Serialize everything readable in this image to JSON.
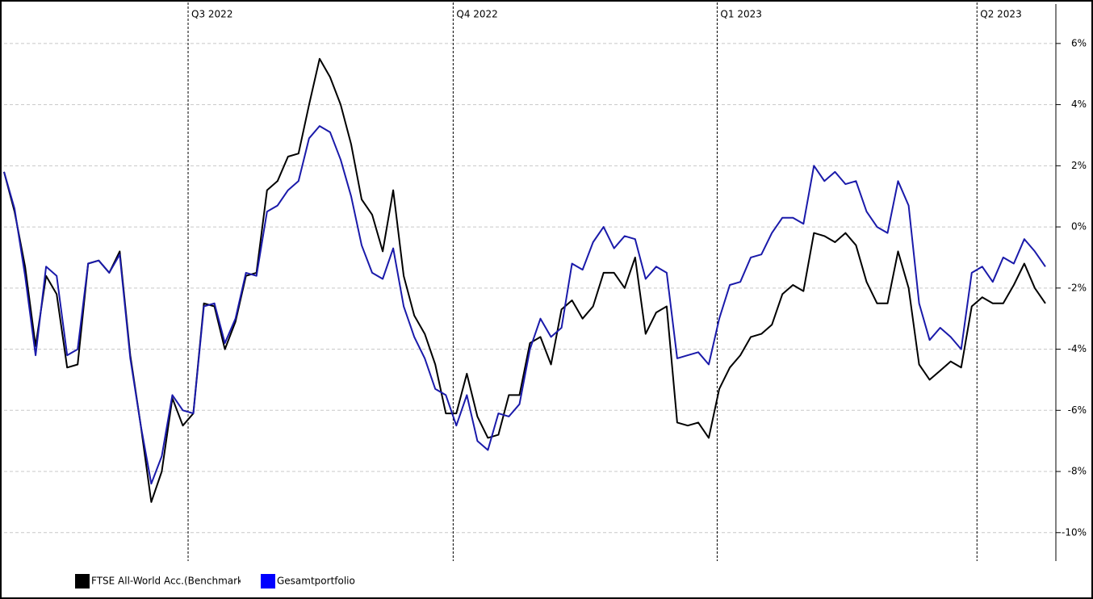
{
  "chart_data": {
    "type": "line",
    "x": [
      0,
      1,
      2,
      3,
      4,
      5,
      6,
      7,
      8,
      9,
      10,
      11,
      12,
      13,
      14,
      15,
      16,
      17,
      18,
      19,
      20,
      21,
      22,
      23,
      24,
      25,
      26,
      27,
      28,
      29,
      30,
      31,
      32,
      33,
      34,
      35,
      36,
      37,
      38,
      39,
      40,
      41,
      42,
      43,
      44,
      45,
      46,
      47,
      48,
      49,
      50,
      51,
      52,
      53,
      54,
      55,
      56,
      57,
      58,
      59,
      60,
      61,
      62,
      63,
      64,
      65,
      66,
      67,
      68,
      69,
      70,
      71,
      72,
      73,
      74,
      75,
      76,
      77,
      78,
      79,
      80,
      81,
      82,
      83,
      84,
      85,
      86,
      87,
      88,
      89,
      90,
      91,
      92,
      93,
      94,
      95,
      96,
      97,
      98,
      99
    ],
    "xlim": [
      0,
      100
    ],
    "xticks": [
      {
        "value": 17.5,
        "label": "Q3 2022"
      },
      {
        "value": 42.7,
        "label": "Q4 2022"
      },
      {
        "value": 67.8,
        "label": "Q1 2023"
      },
      {
        "value": 92.5,
        "label": "Q2 2023"
      }
    ],
    "ylim": [
      -10.93,
      7.29
    ],
    "yticks": [
      {
        "value": 6,
        "label": "6%"
      },
      {
        "value": 4,
        "label": "4%"
      },
      {
        "value": 2,
        "label": "2%"
      },
      {
        "value": 0,
        "label": "0%"
      },
      {
        "value": -2,
        "label": "-2%"
      },
      {
        "value": -4,
        "label": "-4%"
      },
      {
        "value": -6,
        "label": "-6%"
      },
      {
        "value": -8,
        "label": "-8%"
      },
      {
        "value": -10,
        "label": "-10%"
      }
    ],
    "grid": true,
    "series": [
      {
        "name": "FTSE All-World Acc.(Benchmark)",
        "color": "#000000",
        "values": [
          1.8,
          0.5,
          -1.3,
          -3.9,
          -1.6,
          -2.2,
          -4.6,
          -4.5,
          -1.2,
          -1.1,
          -1.5,
          -0.8,
          -4.2,
          -6.5,
          -9.0,
          -8.0,
          -5.6,
          -6.5,
          -6.1,
          -2.5,
          -2.6,
          -4.0,
          -3.1,
          -1.6,
          -1.5,
          1.2,
          1.5,
          2.3,
          2.4,
          4.0,
          5.5,
          4.9,
          4.0,
          2.7,
          0.9,
          0.4,
          -0.8,
          1.2,
          -1.6,
          -2.9,
          -3.5,
          -4.5,
          -6.1,
          -6.1,
          -4.8,
          -6.2,
          -6.9,
          -6.8,
          -5.5,
          -5.5,
          -3.8,
          -3.6,
          -4.5,
          -2.7,
          -2.4,
          -3.0,
          -2.6,
          -1.5,
          -1.5,
          -2.0,
          -1.0,
          -3.5,
          -2.8,
          -2.6,
          -6.4,
          -6.5,
          -6.4,
          -6.9,
          -5.3,
          -4.6,
          -4.2,
          -3.6,
          -3.5,
          -3.2,
          -2.2,
          -1.9,
          -2.1,
          -0.2,
          -0.3,
          -0.5,
          -0.2,
          -0.6,
          -1.8,
          -2.5,
          -2.5,
          -0.8,
          -2.0,
          -4.5,
          -5.0,
          -4.7,
          -4.4,
          -4.6,
          -2.6,
          -2.3,
          -2.5,
          -2.5,
          -1.9,
          -1.2,
          -2.0,
          -2.5
        ]
      },
      {
        "name": "Gesamtportfolio",
        "color": "#1a1aaa",
        "values": [
          1.8,
          0.6,
          -1.6,
          -4.2,
          -1.3,
          -1.6,
          -4.2,
          -4.0,
          -1.2,
          -1.1,
          -1.5,
          -0.9,
          -4.3,
          -6.5,
          -8.4,
          -7.5,
          -5.5,
          -6.0,
          -6.1,
          -2.6,
          -2.5,
          -3.8,
          -3.0,
          -1.5,
          -1.6,
          0.5,
          0.7,
          1.2,
          1.5,
          2.9,
          3.3,
          3.1,
          2.2,
          1.0,
          -0.6,
          -1.5,
          -1.7,
          -0.7,
          -2.6,
          -3.6,
          -4.3,
          -5.3,
          -5.5,
          -6.5,
          -5.5,
          -7.0,
          -7.3,
          -6.1,
          -6.2,
          -5.8,
          -4.0,
          -3.0,
          -3.6,
          -3.3,
          -1.2,
          -1.4,
          -0.5,
          0.0,
          -0.7,
          -0.3,
          -0.4,
          -1.7,
          -1.3,
          -1.5,
          -4.3,
          -4.2,
          -4.1,
          -4.5,
          -3.0,
          -1.9,
          -1.8,
          -1.0,
          -0.9,
          -0.2,
          0.3,
          0.3,
          0.1,
          2.0,
          1.5,
          1.8,
          1.4,
          1.5,
          0.5,
          0.0,
          -0.2,
          1.5,
          0.7,
          -2.5,
          -3.7,
          -3.3,
          -3.6,
          -4.0,
          -1.5,
          -1.3,
          -1.8,
          -1.0,
          -1.2,
          -0.4,
          -0.8,
          -1.3
        ]
      }
    ]
  }
}
